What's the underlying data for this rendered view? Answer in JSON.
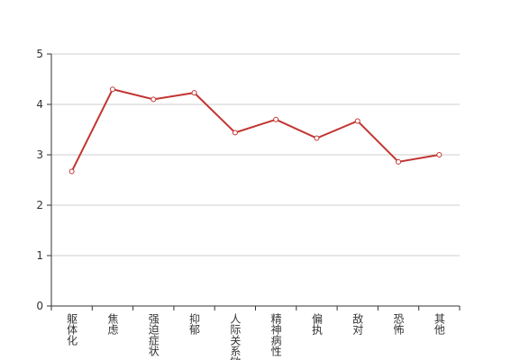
{
  "chart_data": {
    "type": "line",
    "categories": [
      "躯体化",
      "焦虑",
      "强迫症状",
      "抑郁",
      "人际关系敏感",
      "精神病性",
      "偏执",
      "敌对",
      "恐怖",
      "其他"
    ],
    "series": [
      {
        "color": "#c23531",
        "values": [
          2.67,
          4.3,
          4.1,
          4.23,
          3.44,
          3.7,
          3.33,
          3.67,
          2.86,
          3.0
        ]
      }
    ],
    "ylim": [
      0,
      5
    ],
    "yticks": [
      0,
      1,
      2,
      3,
      4,
      5
    ],
    "grid": true
  }
}
